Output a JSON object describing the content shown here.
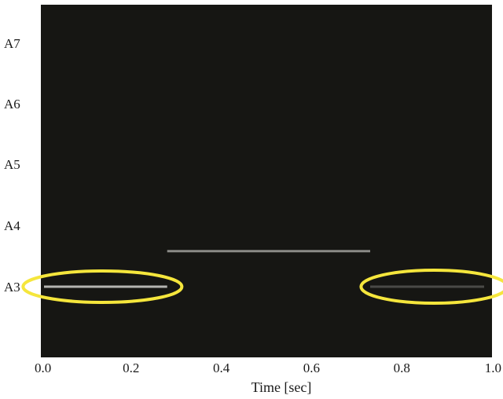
{
  "chart_data": {
    "type": "spectrogram",
    "title": "",
    "xlabel": "Time [sec]",
    "ylabel": "",
    "xlim": [
      0.0,
      1.0
    ],
    "x_ticks": [
      "0.0",
      "0.2",
      "0.4",
      "0.6",
      "0.8",
      "1.0"
    ],
    "x_tick_values": [
      0.0,
      0.2,
      0.4,
      0.6,
      0.8,
      1.0
    ],
    "y_ticks": [
      "A7",
      "A6",
      "A5",
      "A4",
      "A3"
    ],
    "grid": false,
    "background_color": "#161613",
    "segments": [
      {
        "x_start": 0.0,
        "x_end": 0.28,
        "pitch": "A3",
        "color": "#b4b4b0"
      },
      {
        "x_start": 0.28,
        "x_end": 0.73,
        "pitch": "A3",
        "offset_toward_A4": 0.58,
        "color": "#8a8a86"
      },
      {
        "x_start": 0.73,
        "x_end": 1.0,
        "pitch": "A3",
        "color": "#4a4a47"
      }
    ],
    "highlights": [
      {
        "x_center": 0.14,
        "pitch": "A3",
        "color": "#f5e63c"
      },
      {
        "x_center": 0.87,
        "pitch": "A3",
        "color": "#f5e63c"
      }
    ]
  }
}
